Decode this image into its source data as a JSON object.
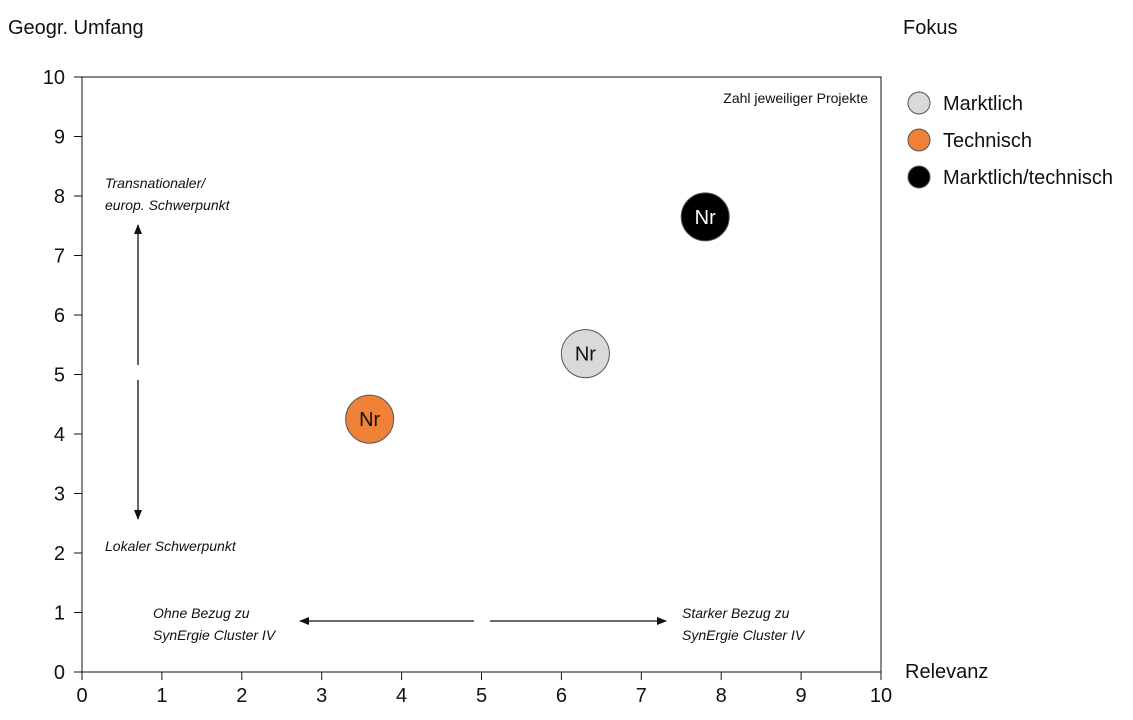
{
  "chart_data": {
    "type": "scatter",
    "xlabel": "Relevanz",
    "ylabel": "Geogr. Umfang",
    "xlim": [
      0,
      10
    ],
    "ylim": [
      0,
      10
    ],
    "x_ticks": [
      "0",
      "1",
      "2",
      "3",
      "4",
      "5",
      "6",
      "7",
      "8",
      "9",
      "10"
    ],
    "y_ticks": [
      "0",
      "1",
      "2",
      "3",
      "4",
      "5",
      "6",
      "7",
      "8",
      "9",
      "10"
    ],
    "grid": false,
    "legend_position": "right",
    "note": "Zahl jeweiliger Projekte",
    "legend": {
      "title": "Fokus",
      "items": [
        {
          "name": "Marktlich",
          "color": "#d9d9d9"
        },
        {
          "name": "Technisch",
          "color": "#f08138"
        },
        {
          "name": "Marktlich/technisch",
          "color": "#000000"
        }
      ]
    },
    "points": [
      {
        "series": "Technisch",
        "x": 3.6,
        "y": 4.25,
        "label": "Nr",
        "color": "#f08138",
        "text_color": "#111111"
      },
      {
        "series": "Marktlich",
        "x": 6.3,
        "y": 5.35,
        "label": "Nr",
        "color": "#d9d9d9",
        "text_color": "#111111"
      },
      {
        "series": "Marktlich/technisch",
        "x": 7.8,
        "y": 7.65,
        "label": "Nr",
        "color": "#000000",
        "text_color": "#ffffff"
      }
    ],
    "annotations": {
      "y_top": [
        "Transnationaler/",
        "europ. Schwerpunkt"
      ],
      "y_bottom": [
        "Lokaler Schwerpunkt"
      ],
      "x_left": [
        "Ohne Bezug zu",
        "SynErgie Cluster IV"
      ],
      "x_right": [
        "Starker Bezug zu",
        "SynErgie Cluster IV"
      ]
    }
  }
}
